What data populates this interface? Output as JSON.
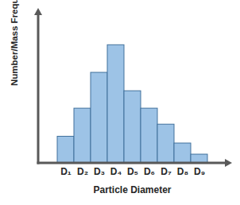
{
  "chart_data": {
    "type": "bar",
    "x_label": "Particle Diameter",
    "y_label": "Number/Mass Frequency [%]",
    "categories": [
      "D₁",
      "D₂",
      "D₃",
      "D₄",
      "D₅",
      "D₆",
      "D₇",
      "D₈",
      "D₉"
    ],
    "values": [
      5.5,
      11.3,
      18.7,
      24.4,
      14.9,
      11.3,
      8.0,
      4.1,
      1.8
    ],
    "color": "#9dc3e6",
    "ylim": [
      0,
      32
    ],
    "yticks": [],
    "tick_labels": "x",
    "grid": false
  }
}
